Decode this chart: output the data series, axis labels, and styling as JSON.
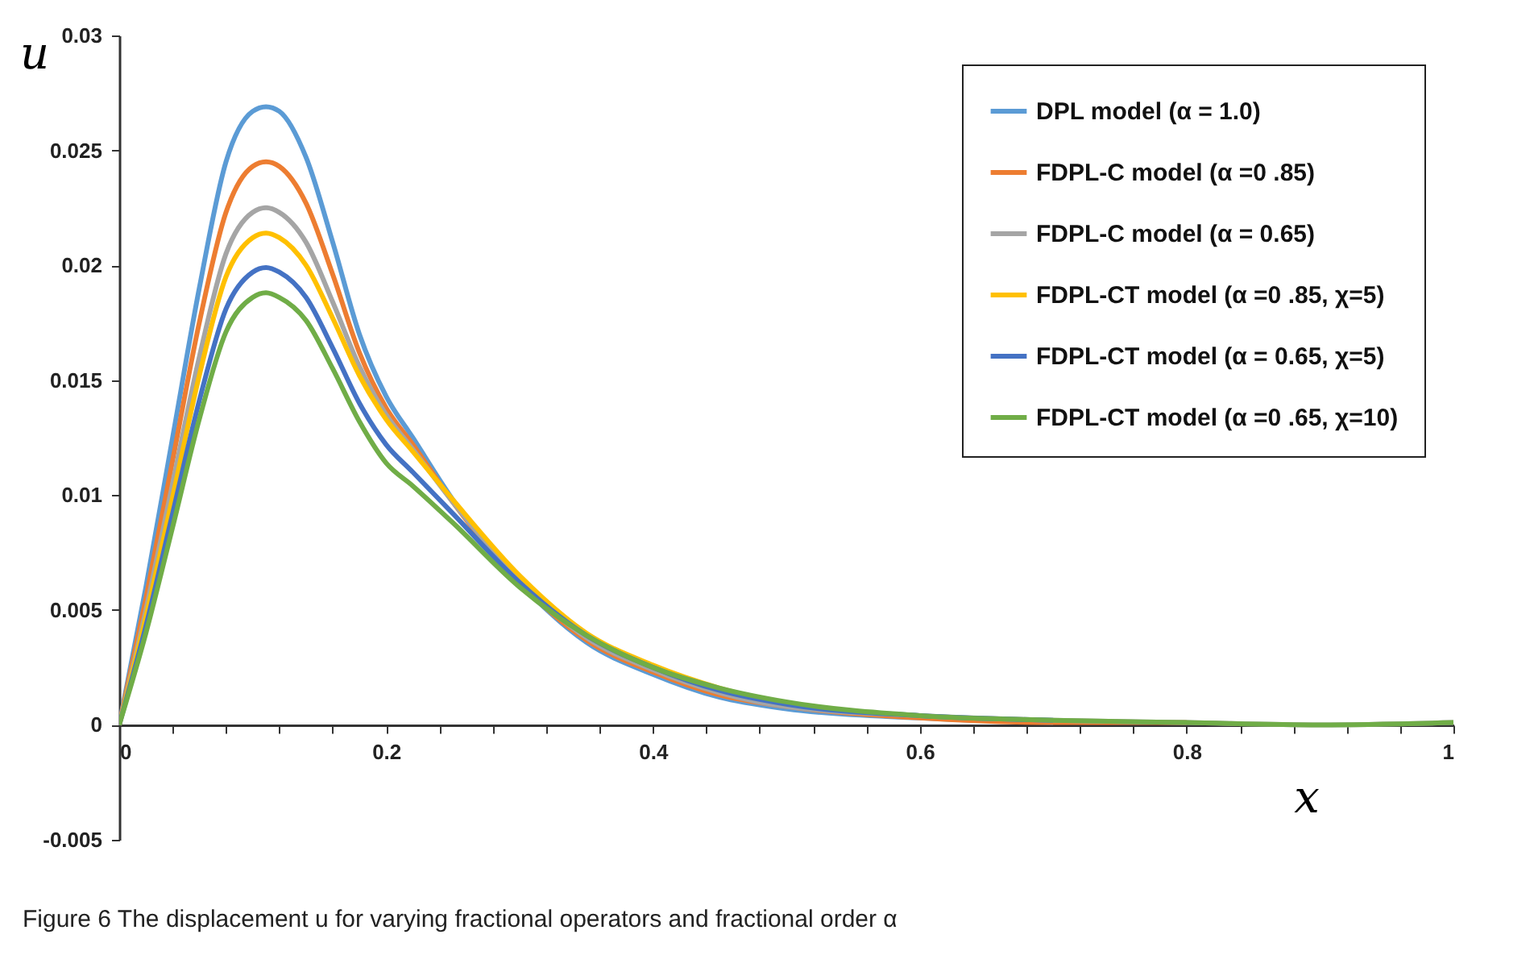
{
  "chart_data": {
    "type": "line",
    "xlabel": "x",
    "ylabel": "u",
    "x": [
      0,
      0.02,
      0.04,
      0.06,
      0.08,
      0.1,
      0.11,
      0.12,
      0.14,
      0.16,
      0.18,
      0.2,
      0.22,
      0.25,
      0.3,
      0.35,
      0.4,
      0.45,
      0.5,
      0.6,
      0.7,
      0.8,
      0.9,
      1
    ],
    "series": [
      {
        "name": "DPL model (α = 1.0)",
        "color": "#5b9bd5",
        "values": [
          0,
          0.006,
          0.0125,
          0.019,
          0.0245,
          0.0267,
          0.0269,
          0.0267,
          0.0247,
          0.021,
          0.017,
          0.0143,
          0.0125,
          0.0098,
          0.0062,
          0.0036,
          0.0022,
          0.0012,
          0.0007,
          0.0003,
          0.0001,
          null,
          null,
          null
        ]
      },
      {
        "name": "FDPL-C model (α =0 .85)",
        "color": "#ed7d31",
        "values": [
          0,
          0.0055,
          0.0115,
          0.0175,
          0.0223,
          0.0243,
          0.0245,
          0.0243,
          0.0227,
          0.0196,
          0.0162,
          0.0138,
          0.0122,
          0.0097,
          0.0062,
          0.0037,
          0.0023,
          0.0013,
          0.0008,
          0.0003,
          0.0001,
          0.0001,
          null,
          null
        ]
      },
      {
        "name": "FDPL-C model (α = 0.65)",
        "color": "#a5a5a5",
        "values": [
          0,
          0.005,
          0.0105,
          0.016,
          0.0205,
          0.0223,
          0.0225,
          0.0223,
          0.021,
          0.0184,
          0.0156,
          0.0135,
          0.012,
          0.0097,
          0.0063,
          0.0038,
          0.0024,
          0.0014,
          0.0008,
          0.0004,
          0.0002,
          0.0001,
          0,
          0.0001
        ]
      },
      {
        "name": "FDPL-CT model (α =0 .85, χ=5)",
        "color": "#ffc000",
        "values": [
          0,
          0.0047,
          0.0099,
          0.0152,
          0.0195,
          0.0212,
          0.0214,
          0.0212,
          0.02,
          0.0177,
          0.0152,
          0.0133,
          0.0119,
          0.0098,
          0.0065,
          0.004,
          0.0026,
          0.0016,
          0.0009,
          null,
          null,
          null,
          null,
          null
        ]
      },
      {
        "name": "FDPL-CT model (α = 0.65, χ=5)",
        "color": "#4472c4",
        "values": [
          0,
          0.0043,
          0.0092,
          0.0141,
          0.0181,
          0.0197,
          0.0199,
          0.0197,
          0.0186,
          0.0164,
          0.014,
          0.0122,
          0.011,
          0.0092,
          0.0062,
          0.0039,
          0.0025,
          0.0015,
          0.0009,
          0.0004,
          0.0002,
          null,
          null,
          null
        ]
      },
      {
        "name": "FDPL-CT model (α =0 .65, χ=10)",
        "color": "#70ad47",
        "values": [
          0,
          0.004,
          0.0086,
          0.0133,
          0.0171,
          0.0186,
          0.0188,
          0.0186,
          0.0176,
          0.0155,
          0.0132,
          0.0114,
          0.0104,
          0.0088,
          0.006,
          0.0039,
          0.0025,
          0.0016,
          0.001,
          0.0004,
          0.0002,
          0.0001,
          0,
          0.0001
        ]
      }
    ],
    "xlim": [
      0,
      1
    ],
    "ylim": [
      -0.005,
      0.03
    ],
    "xticks": [
      0,
      {
        "value": 0.04,
        "label": null
      },
      {
        "value": 0.08,
        "label": null
      },
      {
        "value": 0.12,
        "label": null
      },
      {
        "value": 0.16,
        "label": null
      },
      0.2,
      {
        "value": 0.24,
        "label": null
      },
      {
        "value": 0.28,
        "label": null
      },
      {
        "value": 0.32,
        "label": null
      },
      {
        "value": 0.36,
        "label": null
      },
      0.4,
      {
        "value": 0.44,
        "label": null
      },
      {
        "value": 0.48,
        "label": null
      },
      {
        "value": 0.52,
        "label": null
      },
      {
        "value": 0.56,
        "label": null
      },
      0.6,
      {
        "value": 0.64,
        "label": null
      },
      {
        "value": 0.68,
        "label": null
      },
      {
        "value": 0.72,
        "label": null
      },
      {
        "value": 0.76,
        "label": null
      },
      0.8,
      {
        "value": 0.84,
        "label": null
      },
      {
        "value": 0.88,
        "label": null
      },
      {
        "value": 0.92,
        "label": null
      },
      {
        "value": 0.96,
        "label": null
      },
      1
    ],
    "yticks": [
      -0.005,
      0,
      0.005,
      0.01,
      0.015,
      0.02,
      0.025,
      0.03
    ],
    "grid": false,
    "legend": "top right",
    "marker": "none",
    "line_style": "solid",
    "annotations": [
      "Figure 6  The displacement u for varying fractional operators and fractional order α"
    ]
  }
}
